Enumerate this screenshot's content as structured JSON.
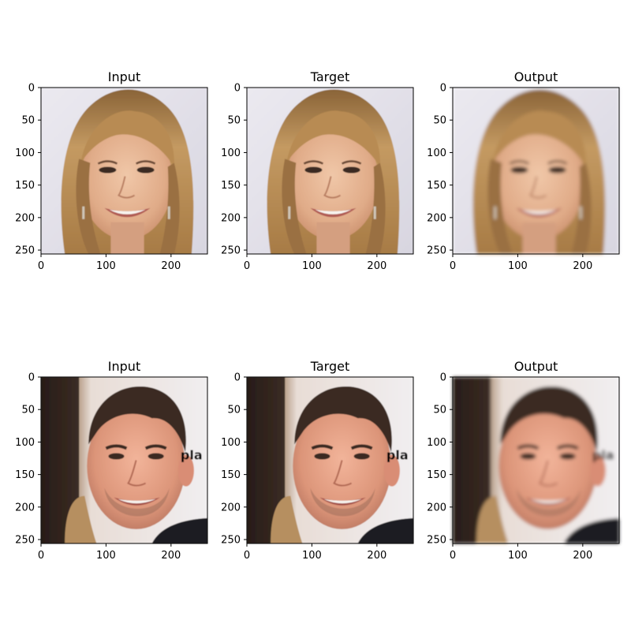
{
  "figure": {
    "rows": [
      {
        "panels": [
          {
            "title": "Input",
            "image": "woman-blonde-smiling-face"
          },
          {
            "title": "Target",
            "image": "woman-blonde-smiling-face"
          },
          {
            "title": "Output",
            "image": "woman-blonde-smiling-face-reconstruction"
          }
        ]
      },
      {
        "panels": [
          {
            "title": "Input",
            "image": "man-dark-hair-smiling-face"
          },
          {
            "title": "Target",
            "image": "man-dark-hair-smiling-face"
          },
          {
            "title": "Output",
            "image": "man-dark-hair-smiling-face-reconstruction"
          }
        ]
      }
    ],
    "y_ticks": [
      "0",
      "50",
      "100",
      "150",
      "200",
      "250"
    ],
    "x_ticks": [
      "0",
      "100",
      "200"
    ],
    "y_tick_values": [
      0,
      50,
      100,
      150,
      200,
      250
    ],
    "x_tick_values": [
      0,
      100,
      200
    ],
    "image_extent": [
      0,
      256
    ]
  },
  "colors": {
    "skin_light": "#e8b99a",
    "skin_shadow": "#c98e6c",
    "blonde_hair": "#b98d55",
    "blonde_hair_dark": "#8a6438",
    "dark_hair": "#3a2a22",
    "background_light": "#e6e4ec",
    "background_warm": "#d9c7bd",
    "mouth": "#b05a52",
    "teeth": "#f7f3ee",
    "eye": "#3b2b24"
  }
}
